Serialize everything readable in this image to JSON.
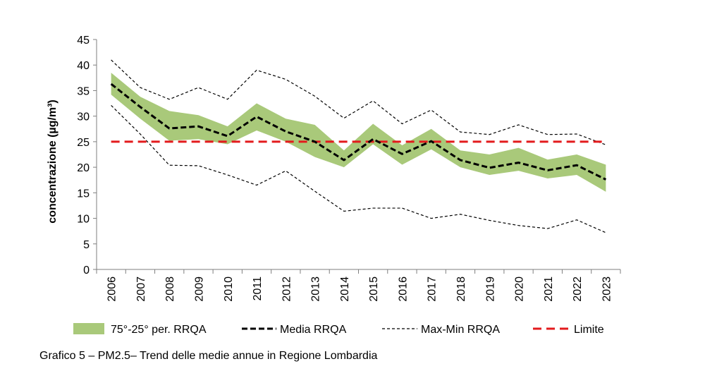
{
  "caption": "Grafico 5 – PM2.5– Trend delle medie annue in Regione Lombardia",
  "chart_data": {
    "type": "line",
    "ylabel": "concentrazione (µg/m³)",
    "xlabel": "",
    "ylim": [
      0,
      45
    ],
    "yticks": [
      0,
      5,
      10,
      15,
      20,
      25,
      30,
      35,
      40,
      45
    ],
    "grid": false,
    "legend_position": "bottom",
    "categories": [
      "2006",
      "2007",
      "2008",
      "2009",
      "2010",
      "2011",
      "2012",
      "2013",
      "2014",
      "2015",
      "2016",
      "2017",
      "2018",
      "2019",
      "2020",
      "2021",
      "2022",
      "2023"
    ],
    "band": {
      "name": "75°-25° per. RRQA",
      "color": "#a9c97a",
      "upper": [
        38.5,
        33.8,
        31.0,
        30.2,
        28.0,
        32.5,
        29.5,
        28.3,
        23.3,
        28.5,
        24.3,
        27.5,
        23.3,
        22.5,
        23.8,
        21.5,
        22.5,
        20.5
      ],
      "lower": [
        34.2,
        29.5,
        25.2,
        25.5,
        24.5,
        27.2,
        25.0,
        22.0,
        20.0,
        24.5,
        20.5,
        23.5,
        20.0,
        18.5,
        19.3,
        17.8,
        18.5,
        15.2
      ]
    },
    "series": [
      {
        "name": "Media RRQA",
        "color": "#000000",
        "style": "thick-dashed",
        "values": [
          36.3,
          31.8,
          27.6,
          28.0,
          26.1,
          29.9,
          27.0,
          25.0,
          21.4,
          25.5,
          22.6,
          25.1,
          21.4,
          19.9,
          20.9,
          19.4,
          20.4,
          17.6
        ]
      },
      {
        "name": "Max-Min RRQA",
        "color": "#000000",
        "style": "thin-dashed",
        "part": "max",
        "values": [
          41.0,
          35.6,
          33.3,
          35.6,
          33.3,
          39.0,
          37.2,
          33.9,
          29.6,
          33.0,
          28.5,
          31.2,
          26.9,
          26.4,
          28.3,
          26.4,
          26.5,
          24.4
        ]
      },
      {
        "name": "Max-Min RRQA",
        "color": "#000000",
        "style": "thin-dashed",
        "part": "min",
        "values": [
          32.1,
          26.5,
          20.4,
          20.3,
          18.5,
          16.5,
          19.3,
          15.3,
          11.4,
          12.0,
          12.0,
          10.0,
          10.8,
          9.6,
          8.6,
          8.0,
          9.7,
          7.2
        ]
      },
      {
        "name": "Limite",
        "color": "#e31a1c",
        "style": "red-dashed",
        "values": [
          25,
          25,
          25,
          25,
          25,
          25,
          25,
          25,
          25,
          25,
          25,
          25,
          25,
          25,
          25,
          25,
          25,
          25
        ]
      }
    ],
    "legend": [
      "75°-25° per. RRQA",
      "Media RRQA",
      "Max-Min RRQA",
      "Limite"
    ]
  }
}
